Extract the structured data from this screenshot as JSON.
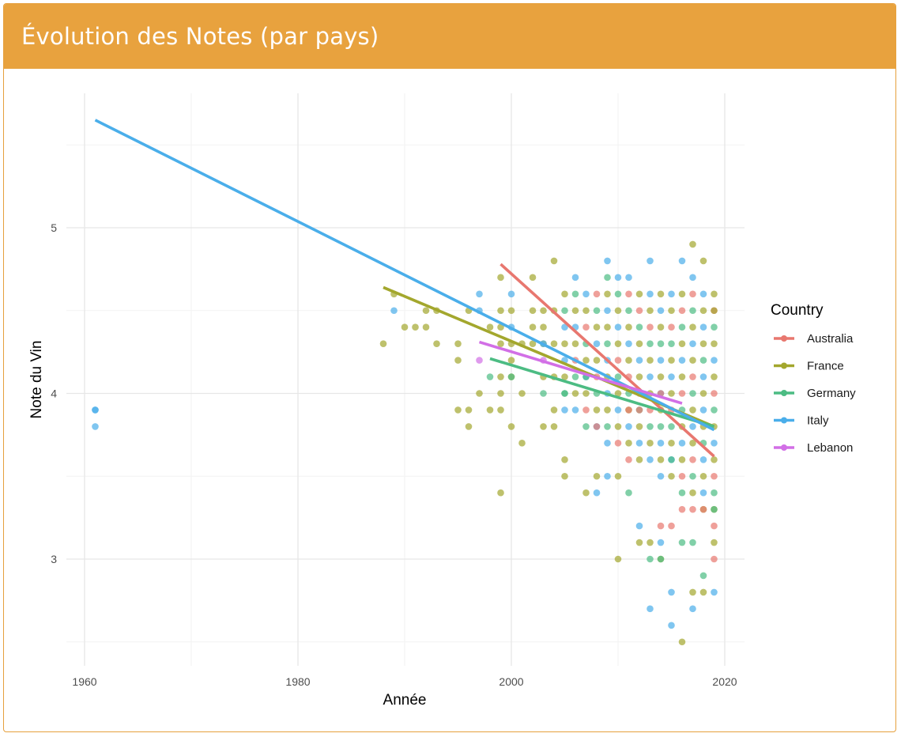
{
  "header": {
    "title": "Évolution des Notes (par pays)"
  },
  "colors": {
    "header_bg": "#e8a23e",
    "Australia": "#e8776f",
    "France": "#a3a72d",
    "Germany": "#4cbc83",
    "Italy": "#4aaeea",
    "Lebanon": "#d26fe6"
  },
  "chart_data": {
    "type": "scatter",
    "xlabel": "Année",
    "ylabel": "Note du Vin",
    "xlim": [
      1957,
      2021
    ],
    "ylim": [
      2.45,
      5.85
    ],
    "x_ticks": [
      1960,
      1980,
      2000,
      2020
    ],
    "y_ticks": [
      3,
      4,
      5
    ],
    "grid": true,
    "legend": {
      "title": "Country",
      "position": "right"
    },
    "series": [
      {
        "name": "Australia",
        "trend": [
          [
            1999,
            4.78
          ],
          [
            2019,
            3.62
          ]
        ],
        "points": [
          [
            2008,
            3.8
          ],
          [
            2012,
            3.9
          ],
          [
            2014,
            3.2
          ],
          [
            2015,
            3.2
          ],
          [
            2016,
            3.3
          ],
          [
            2017,
            3.3
          ],
          [
            2018,
            3.3
          ],
          [
            2019,
            3.2
          ],
          [
            2019,
            3.0
          ],
          [
            2011,
            3.9
          ],
          [
            2014,
            4.0
          ]
        ]
      },
      {
        "name": "France",
        "trend": [
          [
            1988,
            4.64
          ],
          [
            2019,
            3.8
          ]
        ],
        "points": [
          [
            1988,
            4.3
          ],
          [
            1989,
            4.6
          ],
          [
            1990,
            4.4
          ],
          [
            1991,
            4.4
          ],
          [
            1992,
            4.5
          ],
          [
            1992,
            4.4
          ],
          [
            1993,
            4.5
          ],
          [
            1993,
            4.3
          ],
          [
            1995,
            4.3
          ],
          [
            1995,
            4.2
          ],
          [
            1995,
            3.9
          ],
          [
            1996,
            4.5
          ],
          [
            1996,
            3.9
          ],
          [
            1996,
            3.8
          ],
          [
            1997,
            4.0
          ],
          [
            1998,
            4.4
          ],
          [
            1998,
            3.9
          ],
          [
            1999,
            4.7
          ],
          [
            1999,
            4.5
          ],
          [
            1999,
            4.4
          ],
          [
            1999,
            4.3
          ],
          [
            1999,
            4.1
          ],
          [
            1999,
            4.0
          ],
          [
            1999,
            3.9
          ],
          [
            1999,
            3.4
          ],
          [
            2000,
            4.5
          ],
          [
            2000,
            4.3
          ],
          [
            2000,
            4.2
          ],
          [
            2000,
            4.1
          ],
          [
            2000,
            3.8
          ],
          [
            2001,
            4.3
          ],
          [
            2001,
            4.0
          ],
          [
            2001,
            3.7
          ],
          [
            2002,
            4.7
          ],
          [
            2002,
            4.5
          ],
          [
            2002,
            4.4
          ],
          [
            2002,
            4.3
          ],
          [
            2003,
            4.5
          ],
          [
            2003,
            4.4
          ],
          [
            2003,
            4.3
          ],
          [
            2003,
            4.1
          ],
          [
            2003,
            3.8
          ],
          [
            2004,
            4.8
          ],
          [
            2004,
            4.5
          ],
          [
            2004,
            4.3
          ],
          [
            2004,
            4.1
          ],
          [
            2004,
            3.9
          ],
          [
            2004,
            3.8
          ],
          [
            2005,
            3.6
          ],
          [
            2005,
            3.5
          ],
          [
            2007,
            3.4
          ],
          [
            2008,
            3.5
          ],
          [
            2010,
            3.0
          ],
          [
            2010,
            3.5
          ],
          [
            2012,
            3.1
          ],
          [
            2013,
            3.1
          ],
          [
            2014,
            3.0
          ],
          [
            2016,
            2.5
          ],
          [
            2017,
            4.9
          ],
          [
            2017,
            2.8
          ],
          [
            2018,
            4.8
          ],
          [
            2018,
            2.8
          ],
          [
            2019,
            3.1
          ],
          [
            2019,
            4.5
          ]
        ]
      },
      {
        "name": "Germany",
        "trend": [
          [
            1998,
            4.21
          ],
          [
            2019,
            3.8
          ]
        ],
        "points": [
          [
            1998,
            4.1
          ],
          [
            2000,
            4.1
          ],
          [
            2003,
            4.0
          ],
          [
            2005,
            4.0
          ],
          [
            2007,
            4.1
          ],
          [
            2009,
            4.7
          ],
          [
            2011,
            3.4
          ],
          [
            2013,
            3.0
          ],
          [
            2014,
            3.0
          ],
          [
            2015,
            3.6
          ],
          [
            2016,
            3.1
          ],
          [
            2017,
            3.1
          ],
          [
            2018,
            2.9
          ],
          [
            2019,
            3.3
          ]
        ]
      },
      {
        "name": "Italy",
        "trend": [
          [
            1961,
            5.65
          ],
          [
            2019,
            3.78
          ]
        ],
        "points": [
          [
            1961,
            3.9
          ],
          [
            1961,
            3.9
          ],
          [
            1961,
            3.8
          ],
          [
            1989,
            4.5
          ],
          [
            1997,
            4.6
          ],
          [
            1997,
            4.5
          ],
          [
            2000,
            4.6
          ],
          [
            2000,
            4.4
          ],
          [
            2003,
            4.3
          ],
          [
            2006,
            4.7
          ],
          [
            2008,
            3.4
          ],
          [
            2009,
            4.8
          ],
          [
            2009,
            3.5
          ],
          [
            2010,
            4.7
          ],
          [
            2011,
            4.7
          ],
          [
            2013,
            4.8
          ],
          [
            2013,
            2.7
          ],
          [
            2015,
            2.8
          ],
          [
            2015,
            2.6
          ],
          [
            2016,
            4.8
          ],
          [
            2017,
            4.7
          ],
          [
            2017,
            2.7
          ],
          [
            2019,
            2.8
          ],
          [
            2012,
            3.2
          ],
          [
            2014,
            3.1
          ]
        ]
      },
      {
        "name": "Lebanon",
        "trend": [
          [
            1997,
            4.31
          ],
          [
            2016,
            3.94
          ]
        ],
        "points": [
          [
            1997,
            4.2
          ],
          [
            2003,
            4.2
          ]
        ]
      }
    ],
    "dense_cluster": {
      "x_range": [
        2005,
        2019
      ],
      "y_range": [
        3.2,
        4.6
      ]
    }
  }
}
